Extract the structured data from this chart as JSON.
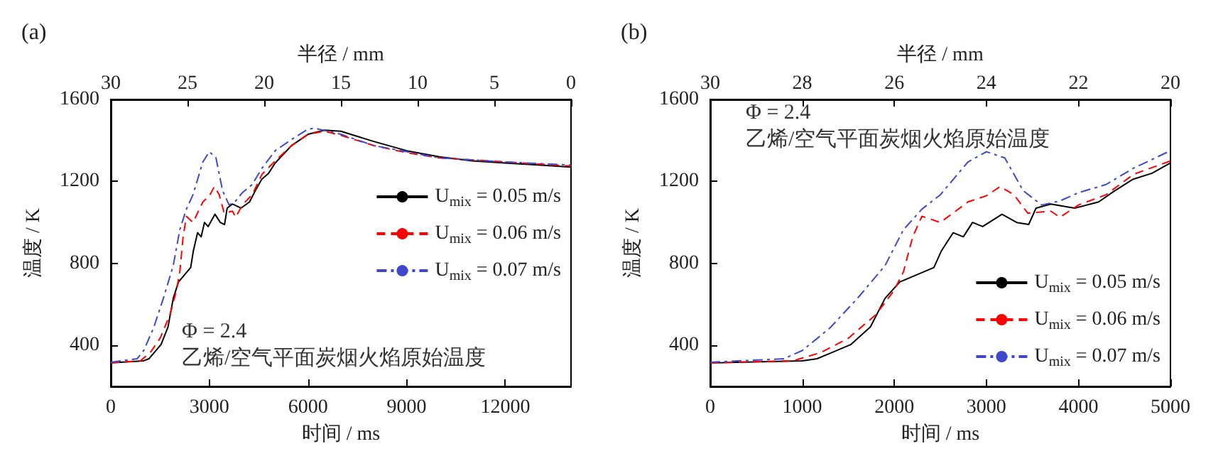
{
  "chart_data": [
    {
      "type": "line",
      "title": "(a)",
      "xlabel": "时间 / ms",
      "ylabel": "温度 / K",
      "x2label": "半径 / mm",
      "xlim": [
        0,
        14000
      ],
      "xticks": [
        0,
        3000,
        6000,
        9000,
        12000
      ],
      "x2lim": [
        30,
        0
      ],
      "x2ticks": [
        30,
        25,
        20,
        15,
        10,
        5,
        0
      ],
      "ylim": [
        200,
        1600
      ],
      "yticks": [
        400,
        800,
        1200,
        1600
      ],
      "grid": false,
      "legend": "right",
      "marker": "none",
      "annotations": [
        "Φ = 2.4",
        "乙烯/空气平面炭烟火焰原始温度"
      ],
      "series": [
        {
          "name": "U$_{mix}$ = 0.05 m/s",
          "color": "#000000",
          "line_style": "solid",
          "x": [
            0,
            1000,
            1160,
            1320,
            1530,
            1740,
            1900,
            2060,
            2220,
            2430,
            2510,
            2640,
            2750,
            2850,
            2960,
            3170,
            3330,
            3460,
            3540,
            3700,
            3960,
            4220,
            4380,
            4590,
            4800,
            5000,
            5500,
            6000,
            6500,
            7000,
            8000,
            9000,
            10000,
            11000,
            12000,
            13000,
            14000
          ],
          "values": [
            315,
            325,
            335,
            365,
            405,
            490,
            630,
            710,
            740,
            780,
            860,
            950,
            930,
            1000,
            980,
            1040,
            1000,
            990,
            1070,
            1090,
            1070,
            1100,
            1150,
            1210,
            1240,
            1290,
            1375,
            1430,
            1450,
            1445,
            1395,
            1350,
            1320,
            1300,
            1290,
            1280,
            1270
          ]
        },
        {
          "name": "U$_{mix}$ = 0.06 m/s",
          "color": "#ff0000",
          "line_style": "dashed",
          "x": [
            0,
            900,
            1200,
            1500,
            1800,
            2000,
            2100,
            2200,
            2300,
            2500,
            2800,
            3000,
            3150,
            3300,
            3450,
            3700,
            3800,
            4000,
            4300,
            4600,
            5000,
            5500,
            6000,
            6500,
            7000,
            8000,
            9000,
            10000,
            12000,
            14000
          ],
          "values": [
            315,
            325,
            365,
            435,
            550,
            670,
            760,
            930,
            1030,
            1000,
            1100,
            1130,
            1175,
            1135,
            1045,
            1055,
            1025,
            1085,
            1135,
            1235,
            1300,
            1375,
            1430,
            1445,
            1425,
            1375,
            1340,
            1315,
            1295,
            1275
          ]
        },
        {
          "name": "U$_{mix}$ = 0.07 m/s",
          "color": "#3f48cc",
          "line_style": "dotted",
          "x": [
            0,
            800,
            1000,
            1300,
            1600,
            1900,
            2100,
            2300,
            2500,
            2800,
            3000,
            3200,
            3400,
            3600,
            3800,
            4000,
            4300,
            4600,
            5000,
            5500,
            6000,
            6200,
            7000,
            8000,
            9000,
            10000,
            12000,
            14000
          ],
          "values": [
            318,
            335,
            375,
            485,
            630,
            790,
            965,
            1065,
            1135,
            1295,
            1345,
            1315,
            1155,
            1085,
            1105,
            1145,
            1185,
            1265,
            1350,
            1405,
            1455,
            1460,
            1430,
            1375,
            1345,
            1315,
            1295,
            1280
          ]
        }
      ]
    },
    {
      "type": "line",
      "title": "(b)",
      "xlabel": "时间 / ms",
      "ylabel": "温度 / K",
      "x2label": "半径 / mm",
      "xlim": [
        0,
        5000
      ],
      "xticks": [
        0,
        1000,
        2000,
        3000,
        4000,
        5000
      ],
      "x2lim": [
        30,
        20
      ],
      "x2ticks": [
        30,
        28,
        26,
        24,
        22,
        20
      ],
      "ylim": [
        200,
        1600
      ],
      "yticks": [
        400,
        800,
        1200,
        1600
      ],
      "grid": false,
      "legend": "bottom right",
      "marker": "none",
      "annotations": [
        "Φ = 2.4",
        "乙烯/空气平面炭烟火焰原始温度"
      ],
      "series": [
        {
          "name": "U$_{mix}$ = 0.05 m/s",
          "color": "#000000",
          "line_style": "solid",
          "x": [
            0,
            1000,
            1160,
            1320,
            1530,
            1740,
            1900,
            2060,
            2220,
            2430,
            2510,
            2640,
            2750,
            2850,
            2960,
            3170,
            3330,
            3460,
            3540,
            3700,
            3960,
            4220,
            4380,
            4590,
            4800,
            5000
          ],
          "values": [
            315,
            325,
            335,
            365,
            405,
            490,
            630,
            710,
            740,
            780,
            860,
            950,
            930,
            1000,
            980,
            1040,
            1000,
            990,
            1070,
            1090,
            1070,
            1100,
            1150,
            1210,
            1240,
            1290
          ]
        },
        {
          "name": "U$_{mix}$ = 0.06 m/s",
          "color": "#ff0000",
          "line_style": "dashed",
          "x": [
            0,
            900,
            1200,
            1500,
            1800,
            2000,
            2100,
            2200,
            2300,
            2500,
            2800,
            3000,
            3150,
            3300,
            3450,
            3700,
            3800,
            4000,
            4300,
            4600,
            5000
          ],
          "values": [
            315,
            325,
            365,
            435,
            550,
            670,
            760,
            930,
            1030,
            1000,
            1100,
            1130,
            1175,
            1135,
            1045,
            1055,
            1025,
            1085,
            1135,
            1235,
            1300
          ]
        },
        {
          "name": "U$_{mix}$ = 0.07 m/s",
          "color": "#3f48cc",
          "line_style": "dotted",
          "x": [
            0,
            800,
            1000,
            1300,
            1600,
            1900,
            2100,
            2300,
            2500,
            2800,
            3000,
            3200,
            3400,
            3600,
            3800,
            4000,
            4300,
            4600,
            5000
          ],
          "values": [
            318,
            335,
            375,
            485,
            630,
            790,
            965,
            1065,
            1135,
            1295,
            1345,
            1315,
            1155,
            1085,
            1105,
            1145,
            1185,
            1265,
            1350
          ]
        }
      ]
    }
  ]
}
